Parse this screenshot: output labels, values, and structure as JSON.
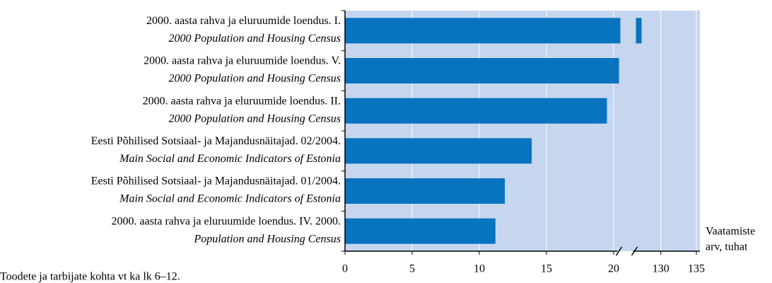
{
  "chart_data": {
    "type": "barh",
    "categories": [
      "2000. aasta rahva ja eluruumide loendus. I.",
      "2000. aasta rahva ja eluruumide loendus. V.",
      "2000. aasta rahva ja eluruumide loendus. II.",
      "Eesti Põhilised Sotsiaal- ja Majandusnäitajad. 02/2004.",
      "Eesti Põhilised Sotsiaal- ja Majandusnäitajad. 01/2004.",
      "2000. aasta rahva ja eluruumide loendus. IV. 2000."
    ],
    "category_subtitles": [
      "2000 Population and Housing Census",
      "2000 Population and Housing Census",
      "2000 Population and Housing Census",
      "Main Social and Economic Indicators of Estonia",
      "Main Social and Economic Indicators of Estonia",
      "Population and Housing Census"
    ],
    "values": [
      127.3,
      20.4,
      19.5,
      13.9,
      11.9,
      11.2
    ],
    "color": "#0874c0",
    "background": "#c6d6ee",
    "xlim": [
      0,
      135
    ],
    "xbreak": [
      20.5,
      126.5
    ],
    "xticks": [
      0,
      5,
      10,
      15,
      20,
      130,
      135
    ],
    "grid": true,
    "xlabel": [
      "Vaatamiste",
      "arv, tuhat"
    ],
    "footnote": "Toodete ja tarbijate kohta vt ka lk 6–12."
  }
}
